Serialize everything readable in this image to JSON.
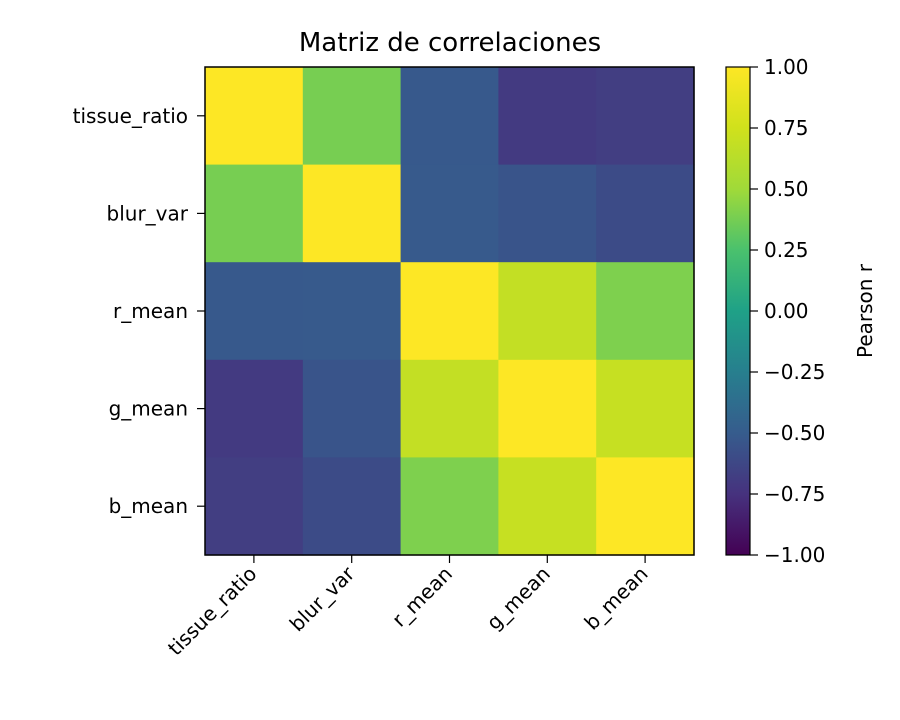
{
  "chart_data": {
    "type": "heatmap",
    "title": "Matriz de correlaciones",
    "row_labels": [
      "tissue_ratio",
      "blur_var",
      "r_mean",
      "g_mean",
      "b_mean"
    ],
    "col_labels": [
      "tissue_ratio",
      "blur_var",
      "r_mean",
      "g_mean",
      "b_mean"
    ],
    "values": [
      [
        1.0,
        0.38,
        -0.52,
        -0.7,
        -0.68
      ],
      [
        0.38,
        1.0,
        -0.51,
        -0.55,
        -0.6
      ],
      [
        -0.52,
        -0.51,
        1.0,
        0.68,
        0.4
      ],
      [
        -0.7,
        -0.55,
        0.68,
        1.0,
        0.7
      ],
      [
        -0.68,
        -0.6,
        0.4,
        0.7,
        1.0
      ]
    ],
    "colormap": "viridis",
    "vmin": -1.0,
    "vmax": 1.0,
    "colorbar": {
      "label": "Pearson r",
      "ticks": [
        1.0,
        0.75,
        0.5,
        0.25,
        0.0,
        -0.25,
        -0.5,
        -0.75,
        -1.0
      ],
      "tick_labels": [
        "1.00",
        "0.75",
        "0.50",
        "0.25",
        "0.00",
        "−0.25",
        "−0.50",
        "−0.75",
        "−1.00"
      ]
    }
  }
}
